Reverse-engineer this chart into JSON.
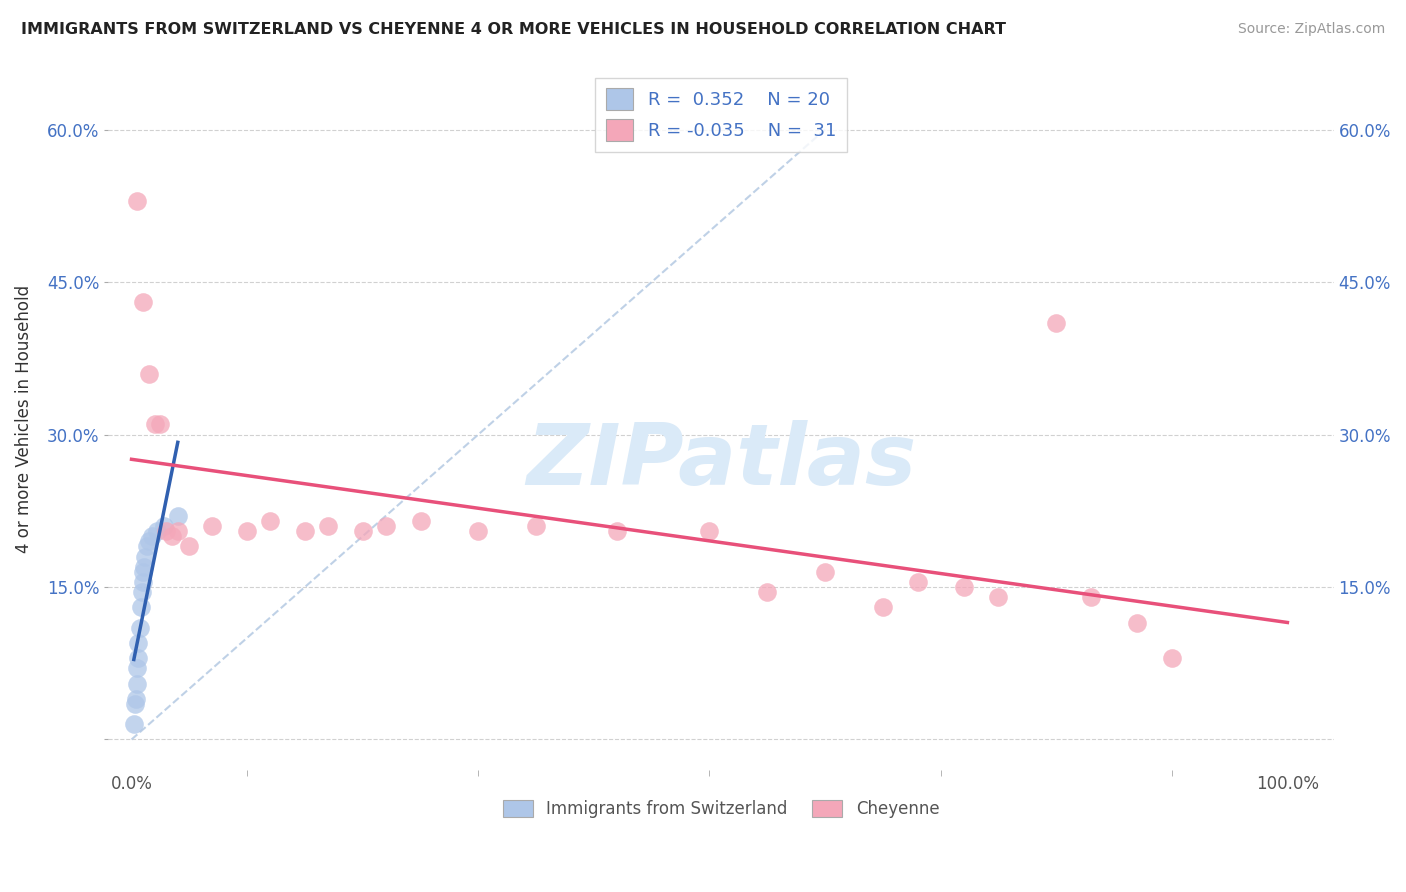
{
  "title": "IMMIGRANTS FROM SWITZERLAND VS CHEYENNE 4 OR MORE VEHICLES IN HOUSEHOLD CORRELATION CHART",
  "source": "Source: ZipAtlas.com",
  "ylabel": "4 or more Vehicles in Household",
  "legend_label1": "Immigrants from Switzerland",
  "legend_label2": "Cheyenne",
  "R1": 0.352,
  "N1": 20,
  "R2": -0.035,
  "N2": 31,
  "xlim": [
    -2.0,
    104.0
  ],
  "ylim": [
    -3.0,
    66.0
  ],
  "color_swiss": "#aec6e8",
  "color_cheyenne": "#f4a7b9",
  "trend_color_swiss": "#3060b0",
  "trend_color_cheyenne": "#e8507a",
  "diag_color": "#b8cce4",
  "watermark_color": "#daeaf8",
  "background_color": "#ffffff",
  "swiss_x": [
    0.2,
    0.3,
    0.4,
    0.5,
    0.5,
    0.6,
    0.6,
    0.7,
    0.8,
    0.9,
    1.0,
    1.0,
    1.1,
    1.2,
    1.3,
    1.5,
    1.8,
    2.2,
    2.8,
    4.0
  ],
  "swiss_y": [
    1.5,
    3.5,
    4.0,
    5.5,
    7.0,
    8.0,
    9.5,
    11.0,
    13.0,
    14.5,
    15.5,
    16.5,
    17.0,
    18.0,
    19.0,
    19.5,
    20.0,
    20.5,
    21.0,
    22.0
  ],
  "cheyenne_x": [
    0.5,
    1.0,
    1.5,
    2.0,
    2.5,
    3.0,
    3.5,
    4.0,
    5.0,
    7.0,
    10.0,
    12.0,
    15.0,
    17.0,
    20.0,
    22.0,
    25.0,
    30.0,
    35.0,
    42.0,
    50.0,
    55.0,
    60.0,
    65.0,
    68.0,
    72.0,
    75.0,
    80.0,
    83.0,
    87.0,
    90.0
  ],
  "cheyenne_y": [
    53.0,
    43.0,
    36.0,
    31.0,
    31.0,
    20.5,
    20.0,
    20.5,
    19.0,
    21.0,
    20.5,
    21.5,
    20.5,
    21.0,
    20.5,
    21.0,
    21.5,
    20.5,
    21.0,
    20.5,
    20.5,
    14.5,
    16.5,
    13.0,
    15.5,
    15.0,
    14.0,
    41.0,
    14.0,
    11.5,
    8.0
  ]
}
